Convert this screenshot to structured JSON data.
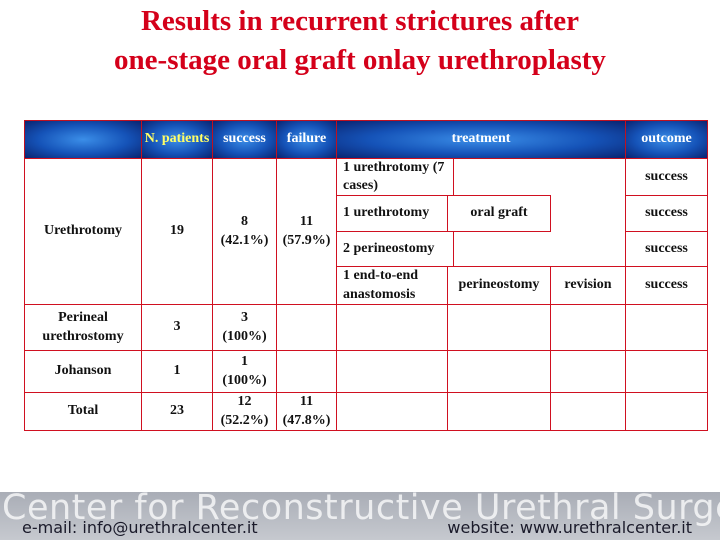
{
  "title": [
    "Results in recurrent strictures after",
    "one-stage oral graft onlay urethroplasty"
  ],
  "table": {
    "header": [
      "N. patients",
      "success",
      "failure",
      "treatment",
      "outcome"
    ],
    "rows": [
      {
        "group": "Urethrotomy",
        "n": 19,
        "success": {
          "count": 8,
          "percent": "(42.1%)"
        },
        "failure": {
          "count": 11,
          "percent": "(57.9%)"
        },
        "treatments": [
          {
            "steps": [
              "1 urethrotomy (7 cases)"
            ],
            "outcome": "success"
          },
          {
            "steps": [
              "1 urethrotomy",
              "oral graft"
            ],
            "outcome": "success"
          },
          {
            "steps": [
              "2 perineostomy"
            ],
            "outcome": "success"
          },
          {
            "steps": [
              "1 end-to-end anastomosis",
              "perineostomy",
              "revision"
            ],
            "outcome": "success"
          }
        ]
      },
      {
        "group": "Perineal urethrostomy",
        "n": 3,
        "success": {
          "count": 3,
          "percent": "(100%)"
        }
      },
      {
        "group": "Johanson",
        "n": 1,
        "success": {
          "count": 1,
          "percent": "(100%)"
        }
      },
      {
        "group": "Total",
        "n": 23,
        "success": {
          "count": 12,
          "percent": "(52.2%)"
        },
        "failure": {
          "count": 11,
          "percent": "(47.8%)"
        }
      }
    ]
  },
  "footer": {
    "banner": "Center for Reconstructive Urethral Surgery",
    "email": "e-mail: info@urethralcenter.it",
    "website": "website: www.urethralcenter.it"
  }
}
